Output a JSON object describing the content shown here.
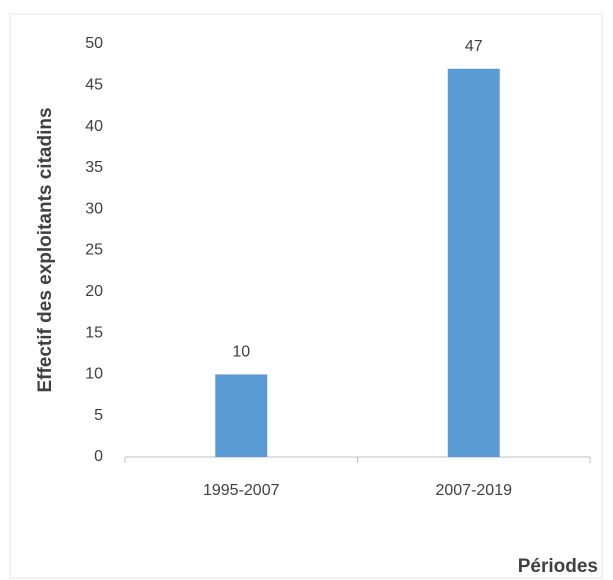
{
  "chart_data": {
    "type": "bar",
    "y_label": "Effectif des exploitants citadins",
    "x_label": "Périodes",
    "categories": [
      "1995-2007",
      "2007-2019"
    ],
    "values": [
      10,
      47
    ],
    "color": "#5b9bd5",
    "ylim": [
      0,
      50
    ],
    "yticks": [
      0,
      5,
      10,
      15,
      20,
      25,
      30,
      35,
      40,
      45,
      50
    ],
    "grid": false
  }
}
